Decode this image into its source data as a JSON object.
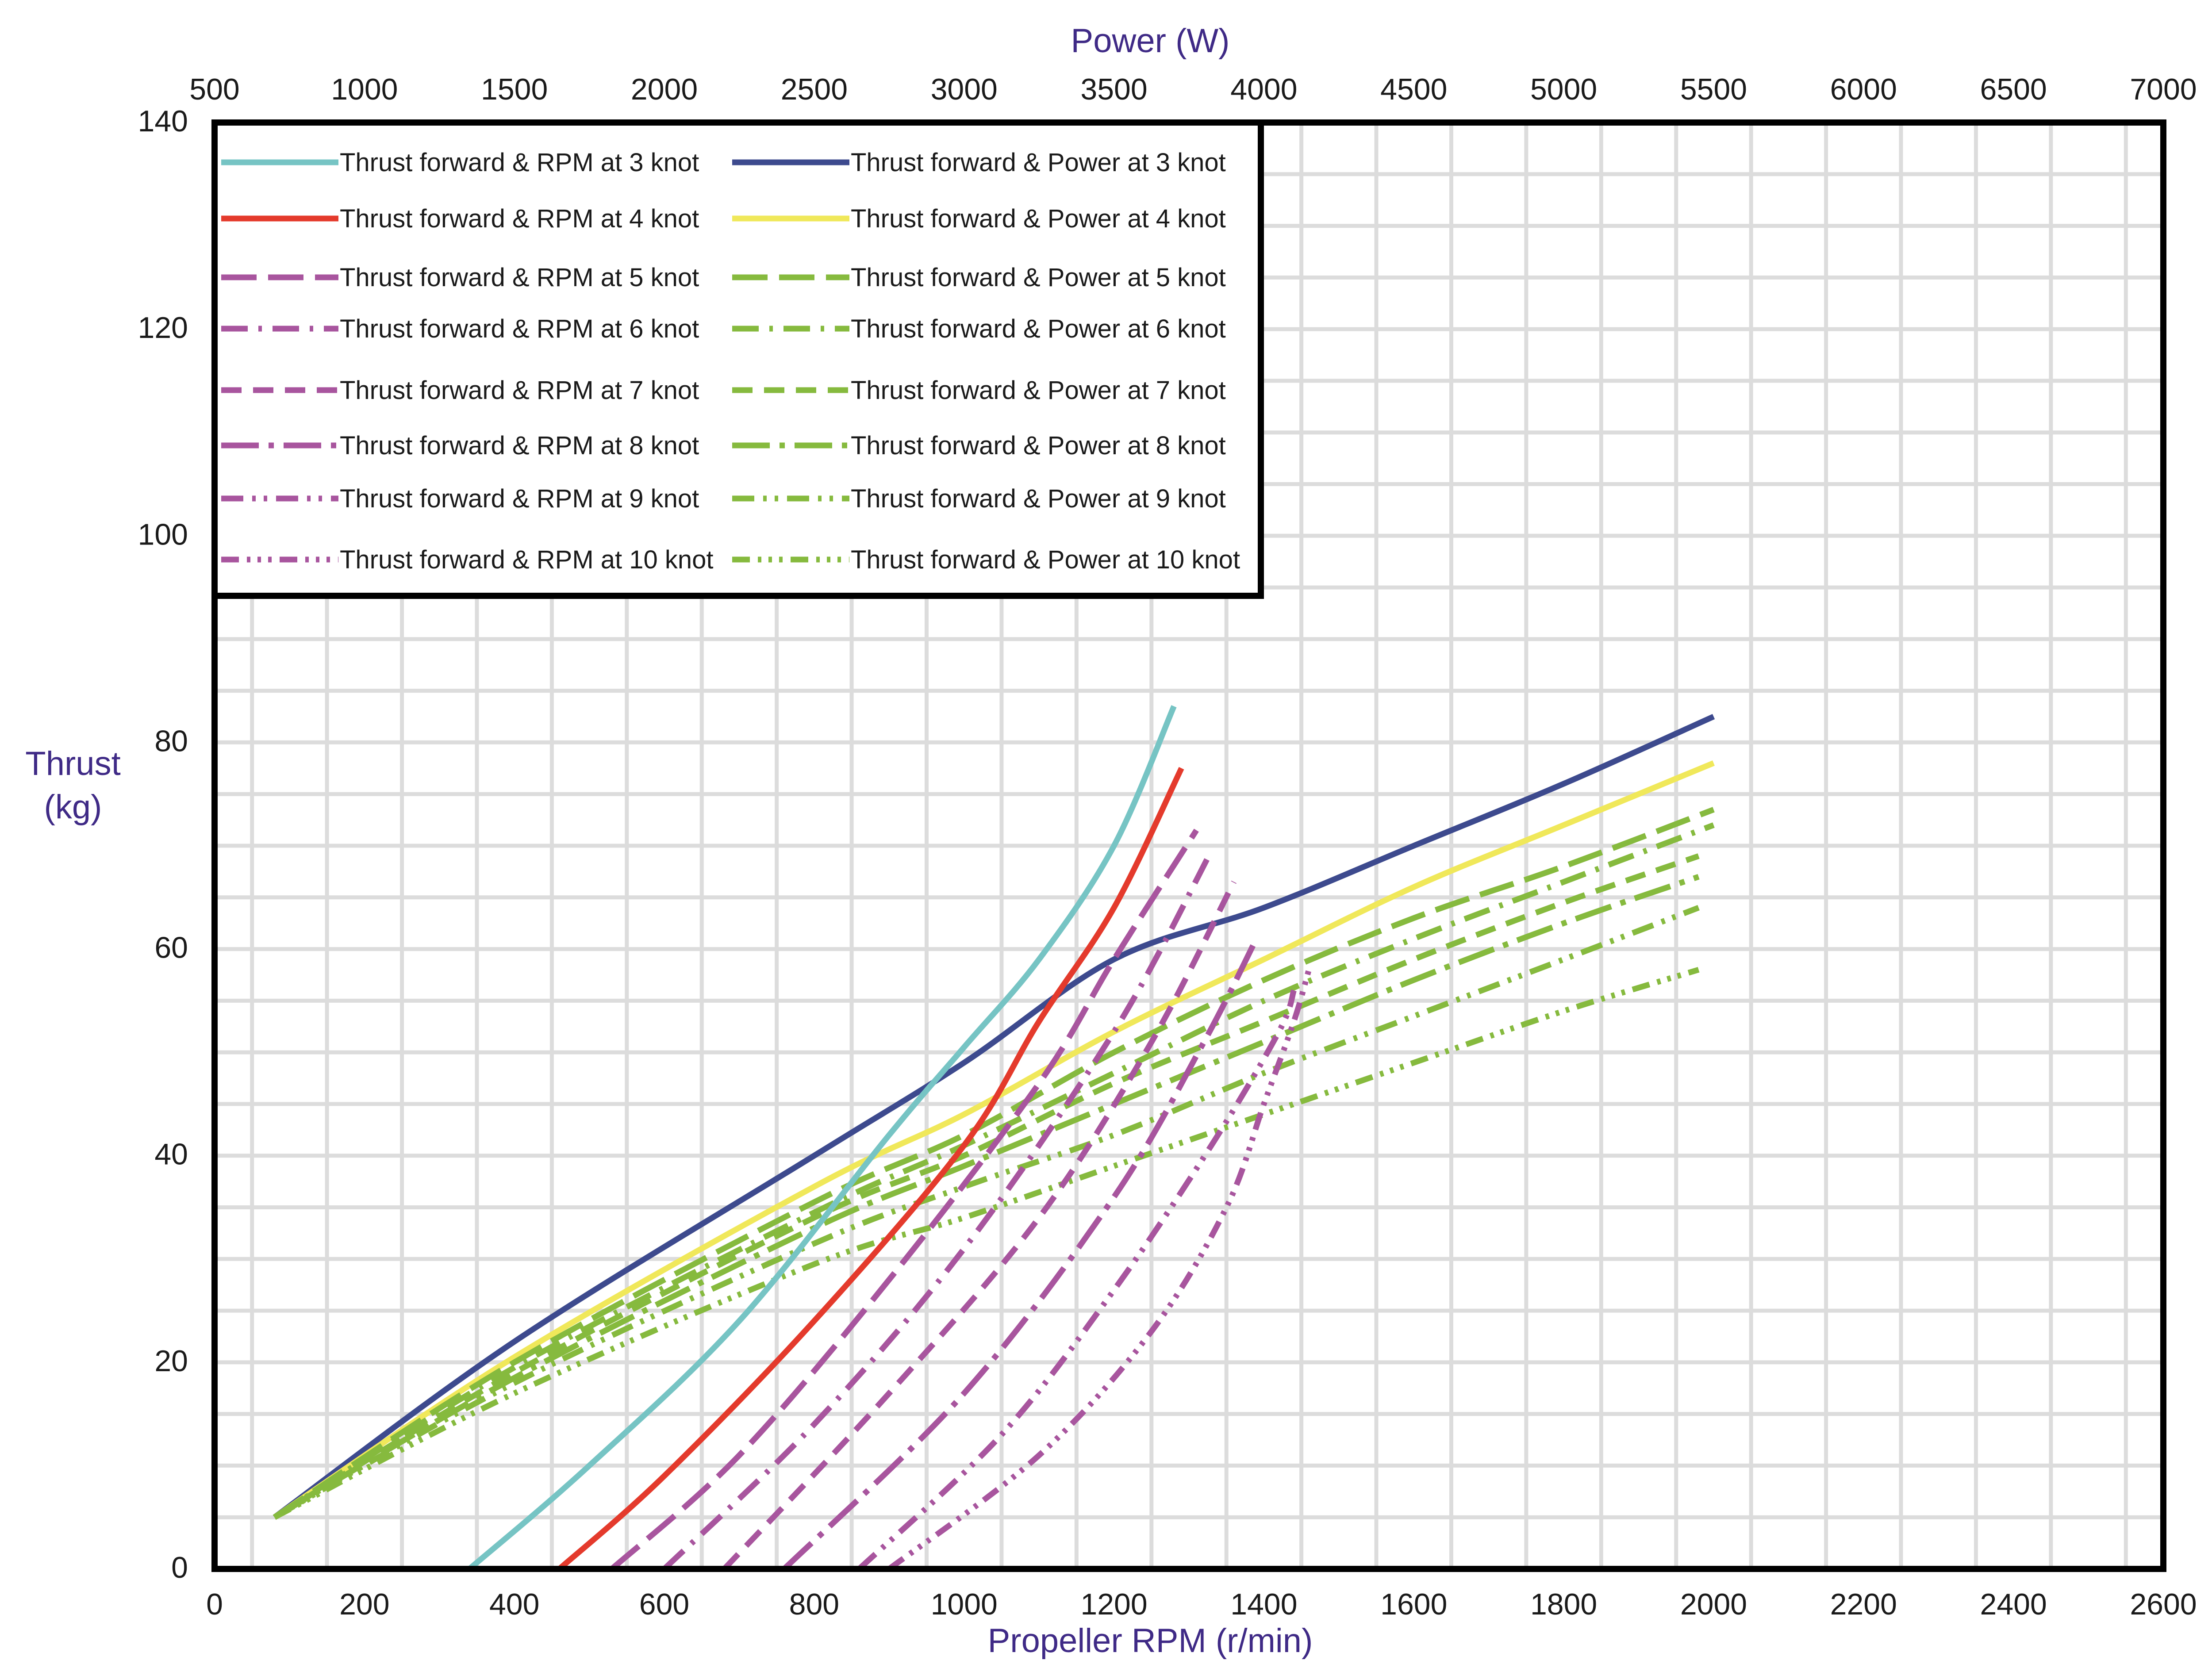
{
  "chart_data": {
    "type": "line",
    "top_axis": {
      "label": "Power (W)",
      "range": [
        500,
        7000
      ],
      "ticks": [
        "500",
        "1000",
        "1500",
        "2000",
        "2500",
        "3000",
        "3500",
        "4000",
        "4500",
        "5000",
        "5500",
        "6000",
        "6500",
        "7000"
      ]
    },
    "x_axis": {
      "label": "Propeller RPM (r/min)",
      "range": [
        0,
        2600
      ],
      "ticks": [
        "0",
        "200",
        "400",
        "600",
        "800",
        "1000",
        "1200",
        "1400",
        "1600",
        "1800",
        "2000",
        "2200",
        "2400",
        "2600"
      ]
    },
    "y_axis": {
      "label_line1": "Thrust",
      "label_line2": "(kg)",
      "range": [
        0,
        140
      ],
      "ticks": [
        "0",
        "20",
        "40",
        "60",
        "80",
        "100",
        "120",
        "140"
      ]
    },
    "grid": true,
    "legend_position": "top-left",
    "series": [
      {
        "name": "Thrust forward &  RPM at 3 knot",
        "axis": "rpm",
        "color": "#76c4c4",
        "dash": "solid",
        "points": [
          [
            340,
            0
          ],
          [
            500,
            10
          ],
          [
            700,
            24
          ],
          [
            900,
            42
          ],
          [
            1000,
            50.5
          ],
          [
            1100,
            59
          ],
          [
            1200,
            70
          ],
          [
            1280,
            83.5
          ]
        ]
      },
      {
        "name": "Thrust forward & Power at 3 knot",
        "axis": "power",
        "color": "#3d4a8e",
        "dash": "solid",
        "points": [
          [
            700,
            5
          ],
          [
            1500,
            22
          ],
          [
            2500,
            40
          ],
          [
            3000,
            49
          ],
          [
            3500,
            59
          ],
          [
            4000,
            64
          ],
          [
            4500,
            70
          ],
          [
            5000,
            76
          ],
          [
            5500,
            82.5
          ]
        ]
      },
      {
        "name": "Thrust forward &  RPM at 4 knot",
        "axis": "rpm",
        "color": "#e43a2c",
        "dash": "solid",
        "points": [
          [
            460,
            0
          ],
          [
            600,
            9
          ],
          [
            800,
            24
          ],
          [
            1000,
            41
          ],
          [
            1100,
            53
          ],
          [
            1200,
            64
          ],
          [
            1290,
            77.5
          ]
        ]
      },
      {
        "name": "Thrust forward & Power at 4 knot",
        "axis": "power",
        "color": "#f0e85a",
        "dash": "solid",
        "points": [
          [
            700,
            5
          ],
          [
            1500,
            20.5
          ],
          [
            2500,
            37
          ],
          [
            3000,
            44
          ],
          [
            3500,
            52
          ],
          [
            4000,
            59
          ],
          [
            4500,
            66
          ],
          [
            5000,
            72
          ],
          [
            5500,
            78
          ]
        ]
      },
      {
        "name": "Thrust forward &  RPM at 5 knot",
        "axis": "rpm",
        "color": "#a8559e",
        "dash": "longdash",
        "points": [
          [
            530,
            0
          ],
          [
            700,
            11
          ],
          [
            900,
            28
          ],
          [
            1100,
            47
          ],
          [
            1200,
            59
          ],
          [
            1310,
            71.5
          ]
        ]
      },
      {
        "name": "Thrust forward & Power at 5 knot",
        "axis": "power",
        "color": "#86ba3e",
        "dash": "longdash",
        "points": [
          [
            700,
            5
          ],
          [
            1500,
            20
          ],
          [
            2500,
            35.5
          ],
          [
            3000,
            42
          ],
          [
            3500,
            50
          ],
          [
            4000,
            57
          ],
          [
            4500,
            63
          ],
          [
            5000,
            68
          ],
          [
            5500,
            73.5
          ]
        ]
      },
      {
        "name": "Thrust forward &  RPM at 6 knot",
        "axis": "rpm",
        "color": "#a8559e",
        "dash": "dashdot",
        "points": [
          [
            600,
            0
          ],
          [
            800,
            14
          ],
          [
            1000,
            31
          ],
          [
            1200,
            52
          ],
          [
            1330,
            69.5
          ]
        ]
      },
      {
        "name": "Thrust forward & Power at 6 knot",
        "axis": "power",
        "color": "#86ba3e",
        "dash": "dashdot",
        "points": [
          [
            700,
            5
          ],
          [
            1500,
            19.5
          ],
          [
            2500,
            34.5
          ],
          [
            3000,
            41
          ],
          [
            3500,
            48
          ],
          [
            4000,
            55
          ],
          [
            4500,
            61
          ],
          [
            5000,
            66.5
          ],
          [
            5500,
            72
          ]
        ]
      },
      {
        "name": "Thrust forward &  RPM at 7 knot",
        "axis": "rpm",
        "color": "#a8559e",
        "dash": "dash",
        "points": [
          [
            680,
            0
          ],
          [
            900,
            17
          ],
          [
            1100,
            34
          ],
          [
            1250,
            51
          ],
          [
            1360,
            66.5
          ]
        ]
      },
      {
        "name": "Thrust forward & Power at 7 knot",
        "axis": "power",
        "color": "#86ba3e",
        "dash": "dash",
        "points": [
          [
            700,
            5
          ],
          [
            1500,
            19
          ],
          [
            2500,
            34
          ],
          [
            3000,
            40
          ],
          [
            3500,
            47
          ],
          [
            4000,
            53
          ],
          [
            4500,
            59
          ],
          [
            5000,
            64.5
          ],
          [
            5450,
            69
          ]
        ]
      },
      {
        "name": "Thrust forward &  RPM at 8 knot",
        "axis": "rpm",
        "color": "#a8559e",
        "dash": "longdashdot",
        "points": [
          [
            760,
            0
          ],
          [
            1000,
            17
          ],
          [
            1200,
            36
          ],
          [
            1320,
            51
          ],
          [
            1390,
            61
          ]
        ]
      },
      {
        "name": "Thrust forward & Power at 8 knot",
        "axis": "power",
        "color": "#86ba3e",
        "dash": "longdashdot",
        "points": [
          [
            700,
            5
          ],
          [
            1500,
            18.5
          ],
          [
            2500,
            33
          ],
          [
            3000,
            39
          ],
          [
            3500,
            45
          ],
          [
            4000,
            51
          ],
          [
            4500,
            57
          ],
          [
            5000,
            62.5
          ],
          [
            5450,
            67
          ]
        ]
      },
      {
        "name": "Thrust forward &  RPM at 9 knot",
        "axis": "rpm",
        "color": "#a8559e",
        "dash": "dashdotdot",
        "points": [
          [
            860,
            0
          ],
          [
            1050,
            13
          ],
          [
            1200,
            27
          ],
          [
            1330,
            41
          ],
          [
            1420,
            52
          ],
          [
            1440,
            56
          ]
        ]
      },
      {
        "name": "Thrust forward & Power at 9 knot",
        "axis": "power",
        "color": "#86ba3e",
        "dash": "dashdotdot",
        "points": [
          [
            700,
            5
          ],
          [
            1500,
            18
          ],
          [
            2500,
            31.5
          ],
          [
            3000,
            37
          ],
          [
            3500,
            42
          ],
          [
            4000,
            48
          ],
          [
            4500,
            53.5
          ],
          [
            5000,
            59
          ],
          [
            5450,
            64
          ]
        ]
      },
      {
        "name": "Thrust forward &  RPM at 10 knot",
        "axis": "rpm",
        "color": "#a8559e",
        "dash": "dashdotdotdot",
        "points": [
          [
            900,
            0
          ],
          [
            1100,
            11
          ],
          [
            1250,
            23
          ],
          [
            1350,
            35
          ],
          [
            1400,
            45
          ],
          [
            1440,
            53
          ],
          [
            1460,
            58
          ]
        ]
      },
      {
        "name": "Thrust forward & Power at 10 knot",
        "axis": "power",
        "color": "#86ba3e",
        "dash": "dashdotdotdot",
        "points": [
          [
            700,
            5
          ],
          [
            1500,
            17
          ],
          [
            2500,
            29.5
          ],
          [
            3000,
            34
          ],
          [
            3500,
            39
          ],
          [
            4000,
            44
          ],
          [
            4500,
            49
          ],
          [
            5000,
            54
          ],
          [
            5450,
            58
          ]
        ]
      }
    ]
  }
}
